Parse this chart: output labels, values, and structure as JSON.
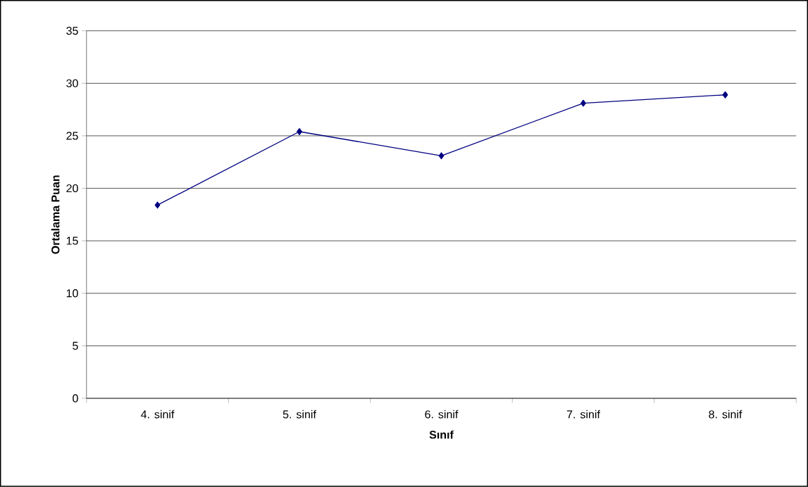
{
  "chart_data": {
    "type": "line",
    "xlabel": "Sınıf",
    "ylabel": "Ortalama Puan",
    "categories": [
      "4. sinif",
      "5. sinif",
      "6. sinif",
      "7. sinif",
      "8. sinif"
    ],
    "series": [
      {
        "color": "#000080",
        "values": [
          18.4,
          25.4,
          23.1,
          28.1,
          28.9
        ]
      }
    ],
    "ylim": [
      0,
      35
    ],
    "yticks": [
      0,
      5,
      10,
      15,
      20,
      25,
      30,
      35
    ],
    "grid": "y",
    "marker": "diamond",
    "line_style": "solid"
  }
}
